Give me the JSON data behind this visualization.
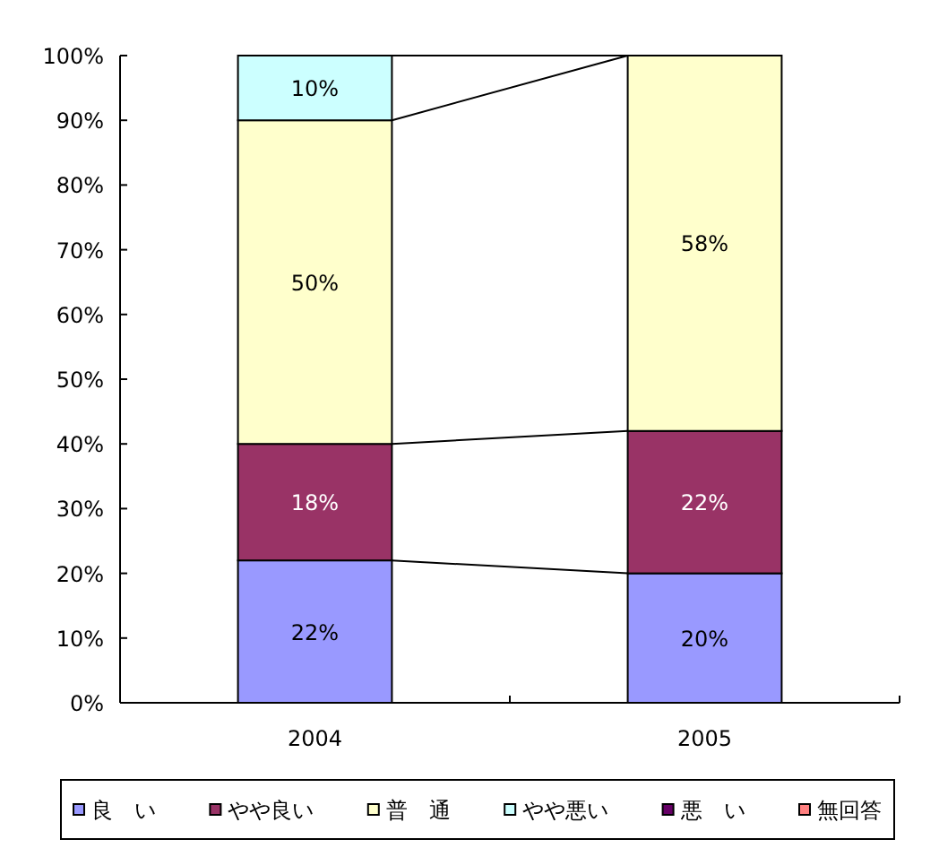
{
  "chart_data": {
    "type": "bar",
    "stacked": true,
    "categories": [
      "2004",
      "2005"
    ],
    "ylim": [
      0,
      100
    ],
    "yticks": [
      {
        "value": 0,
        "label": "0%"
      },
      {
        "value": 10,
        "label": "10%"
      },
      {
        "value": 20,
        "label": "20%"
      },
      {
        "value": 30,
        "label": "30%"
      },
      {
        "value": 40,
        "label": "40%"
      },
      {
        "value": 50,
        "label": "50%"
      },
      {
        "value": 60,
        "label": "60%"
      },
      {
        "value": 70,
        "label": "70%"
      },
      {
        "value": 80,
        "label": "80%"
      },
      {
        "value": 90,
        "label": "90%"
      },
      {
        "value": 100,
        "label": "100%"
      }
    ],
    "legend": "bottom",
    "series": [
      {
        "name": "良　い",
        "color": "#9999ff",
        "values": [
          22,
          20
        ],
        "value_labels": [
          "22%",
          "20%"
        ]
      },
      {
        "name": "やや良い",
        "color": "#993366",
        "values": [
          18,
          22
        ],
        "value_labels": [
          "18%",
          "22%"
        ]
      },
      {
        "name": "普　通",
        "color": "#ffffcc",
        "values": [
          50,
          58
        ],
        "value_labels": [
          "50%",
          "58%"
        ]
      },
      {
        "name": "やや悪い",
        "color": "#ccffff",
        "values": [
          10,
          0
        ],
        "value_labels": [
          "10%",
          null
        ]
      },
      {
        "name": "悪　い",
        "color": "#660066",
        "values": [
          null,
          null
        ]
      },
      {
        "name": "無回答",
        "color": "#ff8080",
        "values": [
          null,
          null
        ]
      }
    ]
  }
}
